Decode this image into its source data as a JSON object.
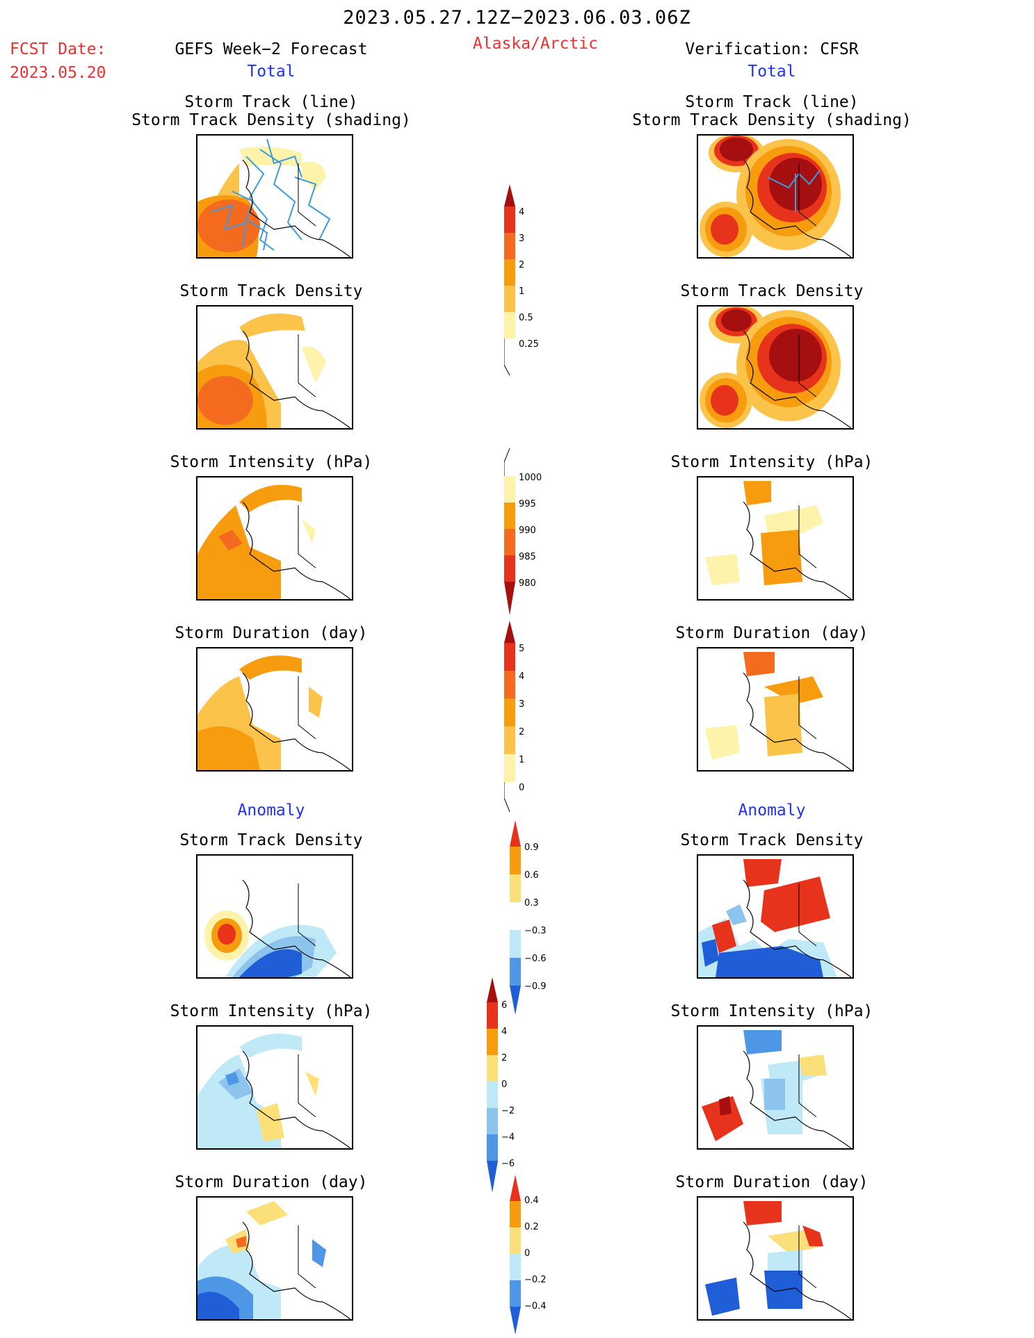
{
  "header": {
    "period": "2023.05.27.12Z−2023.06.03.06Z",
    "fcst_label": "FCST Date:",
    "fcst_date": "2023.05.20",
    "left_title": "GEFS Week−2 Forecast",
    "region": "Alaska/Arctic",
    "right_title": "Verification: CFSR"
  },
  "sections": {
    "total": "Total",
    "anomaly": "Anomaly"
  },
  "panel_titles": {
    "track_line": "Storm Track (line)",
    "track_shading": "Storm Track Density (shading)",
    "density": "Storm Track Density",
    "intensity": "Storm Intensity (hPa)",
    "duration": "Storm Duration (day)"
  },
  "colors": {
    "dark_red": "#a50f0f",
    "red": "#e8331c",
    "orange_red": "#f46a1f",
    "orange": "#f79c0f",
    "light_orange": "#fbc34a",
    "yellow": "#fdf3aa",
    "light_blue": "#bfe9f7",
    "mid_blue": "#8cc4ee",
    "blue": "#4e97e6",
    "dark_blue": "#1f5ed6",
    "track_line": "#3d9be0",
    "title_red": "#f03030",
    "title_blue": "#2030ff"
  },
  "chart_data": [
    {
      "type": "heatmap",
      "panel": "forecast-total-track-and-density",
      "variable": "Storm Track Density",
      "overlay": "Storm Track (line)",
      "column": "GEFS Week-2 Forecast"
    },
    {
      "type": "heatmap",
      "panel": "verification-total-track-and-density",
      "variable": "Storm Track Density",
      "overlay": "Storm Track (line)",
      "column": "Verification: CFSR"
    },
    {
      "type": "heatmap",
      "panel": "forecast-total-density",
      "variable": "Storm Track Density"
    },
    {
      "type": "heatmap",
      "panel": "verification-total-density",
      "variable": "Storm Track Density"
    },
    {
      "type": "heatmap",
      "panel": "forecast-total-intensity",
      "variable": "Storm Intensity (hPa)"
    },
    {
      "type": "heatmap",
      "panel": "verification-total-intensity",
      "variable": "Storm Intensity (hPa)"
    },
    {
      "type": "heatmap",
      "panel": "forecast-total-duration",
      "variable": "Storm Duration (day)"
    },
    {
      "type": "heatmap",
      "panel": "verification-total-duration",
      "variable": "Storm Duration (day)"
    },
    {
      "type": "heatmap",
      "panel": "forecast-anomaly-density",
      "variable": "Storm Track Density"
    },
    {
      "type": "heatmap",
      "panel": "verification-anomaly-density",
      "variable": "Storm Track Density"
    },
    {
      "type": "heatmap",
      "panel": "forecast-anomaly-intensity",
      "variable": "Storm Intensity (hPa)"
    },
    {
      "type": "heatmap",
      "panel": "verification-anomaly-intensity",
      "variable": "Storm Intensity (hPa)"
    },
    {
      "type": "heatmap",
      "panel": "forecast-anomaly-duration",
      "variable": "Storm Duration (day)"
    },
    {
      "type": "heatmap",
      "panel": "verification-anomaly-duration",
      "variable": "Storm Duration (day)"
    }
  ],
  "colorbars": {
    "density_total": [
      "4",
      "3",
      "2",
      "1",
      "0.5",
      "0.25"
    ],
    "intensity_total": [
      "1000",
      "995",
      "990",
      "985",
      "980"
    ],
    "duration_total": [
      "5",
      "4",
      "3",
      "2",
      "1",
      "0"
    ],
    "density_anomaly": [
      "0.9",
      "0.6",
      "0.3",
      "−0.3",
      "−0.6",
      "−0.9"
    ],
    "intensity_anomaly": [
      "6",
      "4",
      "2",
      "0",
      "−2",
      "−4",
      "−6"
    ],
    "duration_anomaly": [
      "0.4",
      "0.2",
      "0",
      "−0.2",
      "−0.4"
    ]
  }
}
